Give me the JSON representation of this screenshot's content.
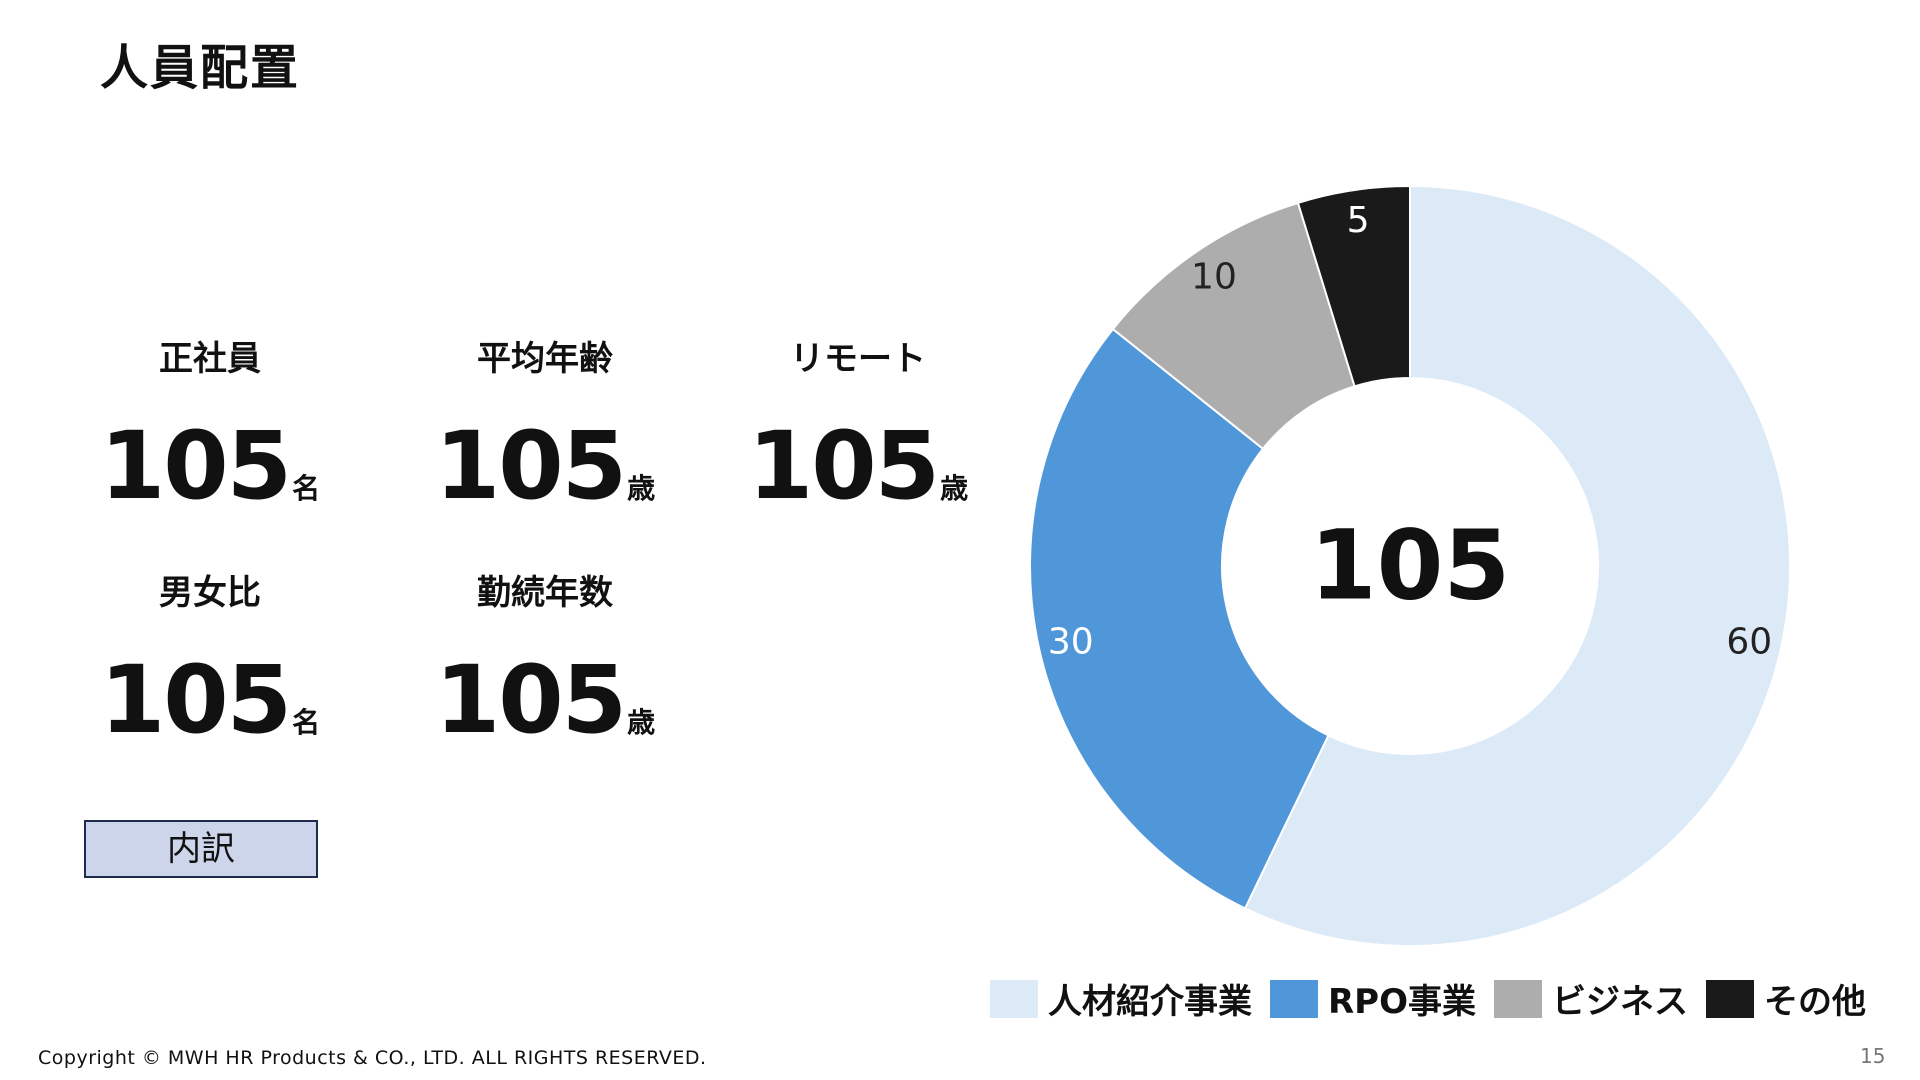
{
  "title": "人員配置",
  "stats": [
    {
      "label": "正社員",
      "value": "105",
      "unit": "名"
    },
    {
      "label": "平均年齢",
      "value": "105",
      "unit": "歳"
    },
    {
      "label": "リモート",
      "value": "105",
      "unit": "歳"
    },
    {
      "label": "男女比",
      "value": "105",
      "unit": "名"
    },
    {
      "label": "勤続年数",
      "value": "105",
      "unit": "歳"
    }
  ],
  "breakdown_button": "内訳",
  "chart_data": {
    "type": "pie",
    "variant": "donut",
    "center_label": "105",
    "slices": [
      {
        "name": "人材紹介事業",
        "value": 60,
        "color": "#dce9f7",
        "label_color": "#222222"
      },
      {
        "name": "RPO事業",
        "value": 30,
        "color": "#5097d9",
        "label_color": "#ffffff"
      },
      {
        "name": "ビジネス",
        "value": 10,
        "color": "#adadad",
        "label_color": "#222222"
      },
      {
        "name": "その他",
        "value": 5,
        "color": "#1a1a1a",
        "label_color": "#ffffff"
      }
    ],
    "legend_position": "bottom"
  },
  "footer": {
    "copyright": "Copyright © MWH HR Products & CO., LTD. ALL RIGHTS RESERVED.",
    "page_number": "15"
  }
}
